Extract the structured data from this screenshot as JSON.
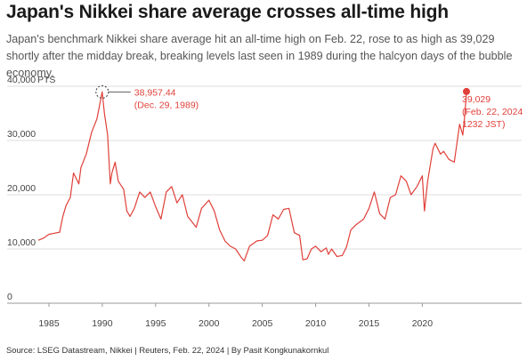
{
  "title": "Japan's Nikkei share average crosses all-time high",
  "subtitle": "Japan's benchmark Nikkei share average hit an all-time high on Feb. 22, rose to as high as 39,029 shortly after the midday break, breaking levels last seen in 1989 during the halcyon days of the bubble economy.",
  "source": "Source: LSEG Datastream, Nikkei | Reuters, Feb. 22, 2024 | By Pasit Kongkunakornkul",
  "colors": {
    "line": "#e0403a",
    "grid": "#d0d0d0",
    "axis": "#999999",
    "text": "#444444"
  },
  "chart_data": {
    "type": "line",
    "title": "Japan's Nikkei share average crosses all-time high",
    "ylabel": "PTS",
    "xlabel": "",
    "ylim": [
      0,
      40000
    ],
    "xlim": [
      1982.5,
      2024.5
    ],
    "y_ticks": [
      0,
      10000,
      20000,
      30000,
      40000
    ],
    "y_tick_labels": [
      "0",
      "10,000",
      "20,000",
      "30,000",
      "40,000"
    ],
    "x_ticks": [
      1985,
      1990,
      1995,
      2000,
      2005,
      2010,
      2015,
      2020
    ],
    "x_tick_labels": [
      "1985",
      "1990",
      "1995",
      "2000",
      "2005",
      "2010",
      "2015",
      "2020"
    ],
    "grid": true,
    "series": [
      {
        "x": [
          1984.0,
          1984.5,
          1985.0,
          1985.5,
          1986.0,
          1986.3,
          1986.6,
          1987.0,
          1987.3,
          1987.8,
          1988.0,
          1988.5,
          1989.0,
          1989.5,
          1989.99,
          1990.2,
          1990.5,
          1990.75,
          1990.9,
          1991.2,
          1991.5,
          1992.0,
          1992.3,
          1992.6,
          1993.0,
          1993.5,
          1994.0,
          1994.5,
          1995.0,
          1995.5,
          1996.0,
          1996.5,
          1997.0,
          1997.5,
          1998.0,
          1998.8,
          1999.3,
          2000.0,
          2000.5,
          2001.0,
          2001.5,
          2002.0,
          2002.5,
          2003.0,
          2003.3,
          2003.8,
          2004.5,
          2005.0,
          2005.5,
          2006.0,
          2006.5,
          2007.0,
          2007.5,
          2008.0,
          2008.5,
          2008.8,
          2009.2,
          2009.6,
          2010.0,
          2010.5,
          2011.0,
          2011.2,
          2011.5,
          2012.0,
          2012.5,
          2012.9,
          2013.3,
          2013.8,
          2014.5,
          2015.0,
          2015.5,
          2016.0,
          2016.5,
          2017.0,
          2017.5,
          2018.0,
          2018.5,
          2018.95,
          2019.5,
          2020.0,
          2020.2,
          2020.5,
          2021.0,
          2021.2,
          2021.7,
          2022.0,
          2022.5,
          2023.0,
          2023.5,
          2023.8,
          2024.0,
          2024.14
        ],
        "y": [
          11600,
          12000,
          12700,
          12900,
          13100,
          16000,
          18000,
          19500,
          24000,
          22000,
          25000,
          27500,
          31500,
          34000,
          38957,
          35000,
          31000,
          22000,
          24000,
          26000,
          22500,
          21000,
          17000,
          16000,
          17500,
          20500,
          19500,
          20500,
          17800,
          15500,
          20500,
          21500,
          18500,
          20000,
          16000,
          14000,
          17500,
          19000,
          17000,
          13500,
          11500,
          10500,
          10000,
          8500,
          7800,
          10500,
          11500,
          11600,
          12500,
          16300,
          15500,
          17300,
          17500,
          13000,
          12500,
          8000,
          8200,
          10000,
          10500,
          9500,
          10200,
          9000,
          10000,
          8600,
          8800,
          10400,
          13500,
          14500,
          15500,
          17500,
          20500,
          16500,
          15500,
          19500,
          20000,
          23500,
          22500,
          20000,
          21500,
          23500,
          17000,
          22500,
          28500,
          29500,
          27500,
          28000,
          26500,
          26000,
          33000,
          31000,
          35000,
          39029
        ]
      }
    ],
    "annotations": [
      {
        "label": "38,957.44",
        "sublabel": "(Dec. 29, 1989)",
        "x": 1989.99,
        "y": 38957
      },
      {
        "label": "39,029",
        "sublabel": "(Feb. 22, 2024",
        "sublabel2": "1232 JST)",
        "x": 2024.14,
        "y": 39029
      }
    ]
  }
}
